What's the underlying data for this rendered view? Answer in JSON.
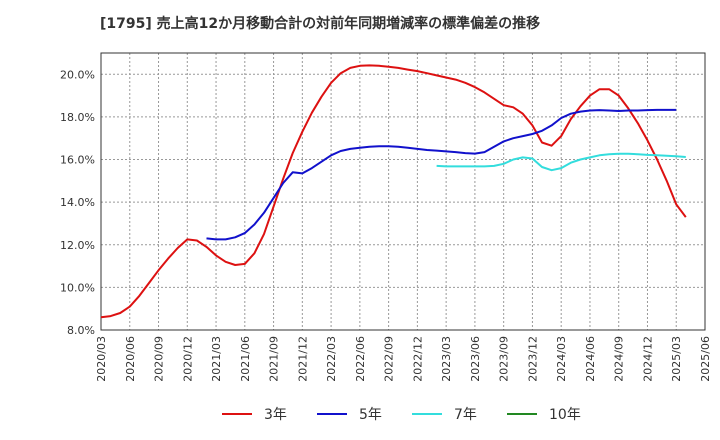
{
  "chart_data": {
    "type": "line",
    "title": "[1795]  売上高12か月移動合計の対前年同期増減率の標準偏差の推移",
    "xlabel": "",
    "ylabel": "",
    "ylim": [
      8.0,
      21.0
    ],
    "yticks": [
      8.0,
      10.0,
      12.0,
      14.0,
      16.0,
      18.0,
      20.0
    ],
    "ytick_labels": [
      "8.0%",
      "10.0%",
      "12.0%",
      "14.0%",
      "16.0%",
      "18.0%",
      "20.0%"
    ],
    "x_start": "2020-03",
    "x_end": "2025-06",
    "xtick_labels": [
      "2020/03",
      "2020/06",
      "2020/09",
      "2020/12",
      "2021/03",
      "2021/06",
      "2021/09",
      "2021/12",
      "2022/03",
      "2022/06",
      "2022/09",
      "2022/12",
      "2023/03",
      "2023/06",
      "2023/09",
      "2023/12",
      "2024/03",
      "2024/06",
      "2024/09",
      "2024/12",
      "2025/03",
      "2025/06"
    ],
    "legend_position": "bottom",
    "series": [
      {
        "name": "3年",
        "color": "#dd1111",
        "start": "2020-03",
        "values": [
          8.6,
          8.65,
          8.8,
          9.1,
          9.6,
          10.2,
          10.8,
          11.35,
          11.85,
          12.25,
          12.2,
          11.9,
          11.5,
          11.2,
          11.05,
          11.1,
          11.6,
          12.5,
          13.8,
          15.1,
          16.3,
          17.3,
          18.2,
          18.95,
          19.6,
          20.05,
          20.3,
          20.4,
          20.42,
          20.4,
          20.35,
          20.3,
          20.22,
          20.15,
          20.05,
          19.95,
          19.85,
          19.75,
          19.6,
          19.4,
          19.15,
          18.85,
          18.55,
          18.45,
          18.15,
          17.6,
          16.8,
          16.65,
          17.1,
          17.9,
          18.5,
          19.0,
          19.3,
          19.3,
          19.0,
          18.4,
          17.7,
          16.9,
          16.0,
          15.0,
          13.9,
          13.3
        ]
      },
      {
        "name": "5年",
        "color": "#1111cc",
        "start": "2021-02",
        "values": [
          12.3,
          12.25,
          12.25,
          12.35,
          12.55,
          12.95,
          13.5,
          14.2,
          14.9,
          15.4,
          15.35,
          15.6,
          15.9,
          16.2,
          16.4,
          16.5,
          16.55,
          16.6,
          16.62,
          16.62,
          16.6,
          16.55,
          16.5,
          16.45,
          16.42,
          16.38,
          16.35,
          16.3,
          16.28,
          16.35,
          16.6,
          16.85,
          17.0,
          17.1,
          17.2,
          17.35,
          17.6,
          17.95,
          18.15,
          18.25,
          18.3,
          18.32,
          18.3,
          18.28,
          18.3,
          18.3,
          18.32,
          18.33,
          18.33,
          18.33
        ]
      },
      {
        "name": "7年",
        "color": "#33dddd",
        "start": "2023-02",
        "values": [
          15.7,
          15.68,
          15.68,
          15.68,
          15.68,
          15.68,
          15.7,
          15.8,
          16.0,
          16.1,
          16.05,
          15.65,
          15.5,
          15.6,
          15.85,
          16.0,
          16.1,
          16.2,
          16.25,
          16.27,
          16.27,
          16.25,
          16.22,
          16.2,
          16.18,
          16.15,
          16.12
        ]
      },
      {
        "name": "10年",
        "color": "#228822",
        "start": "2025-03",
        "values": []
      }
    ]
  }
}
